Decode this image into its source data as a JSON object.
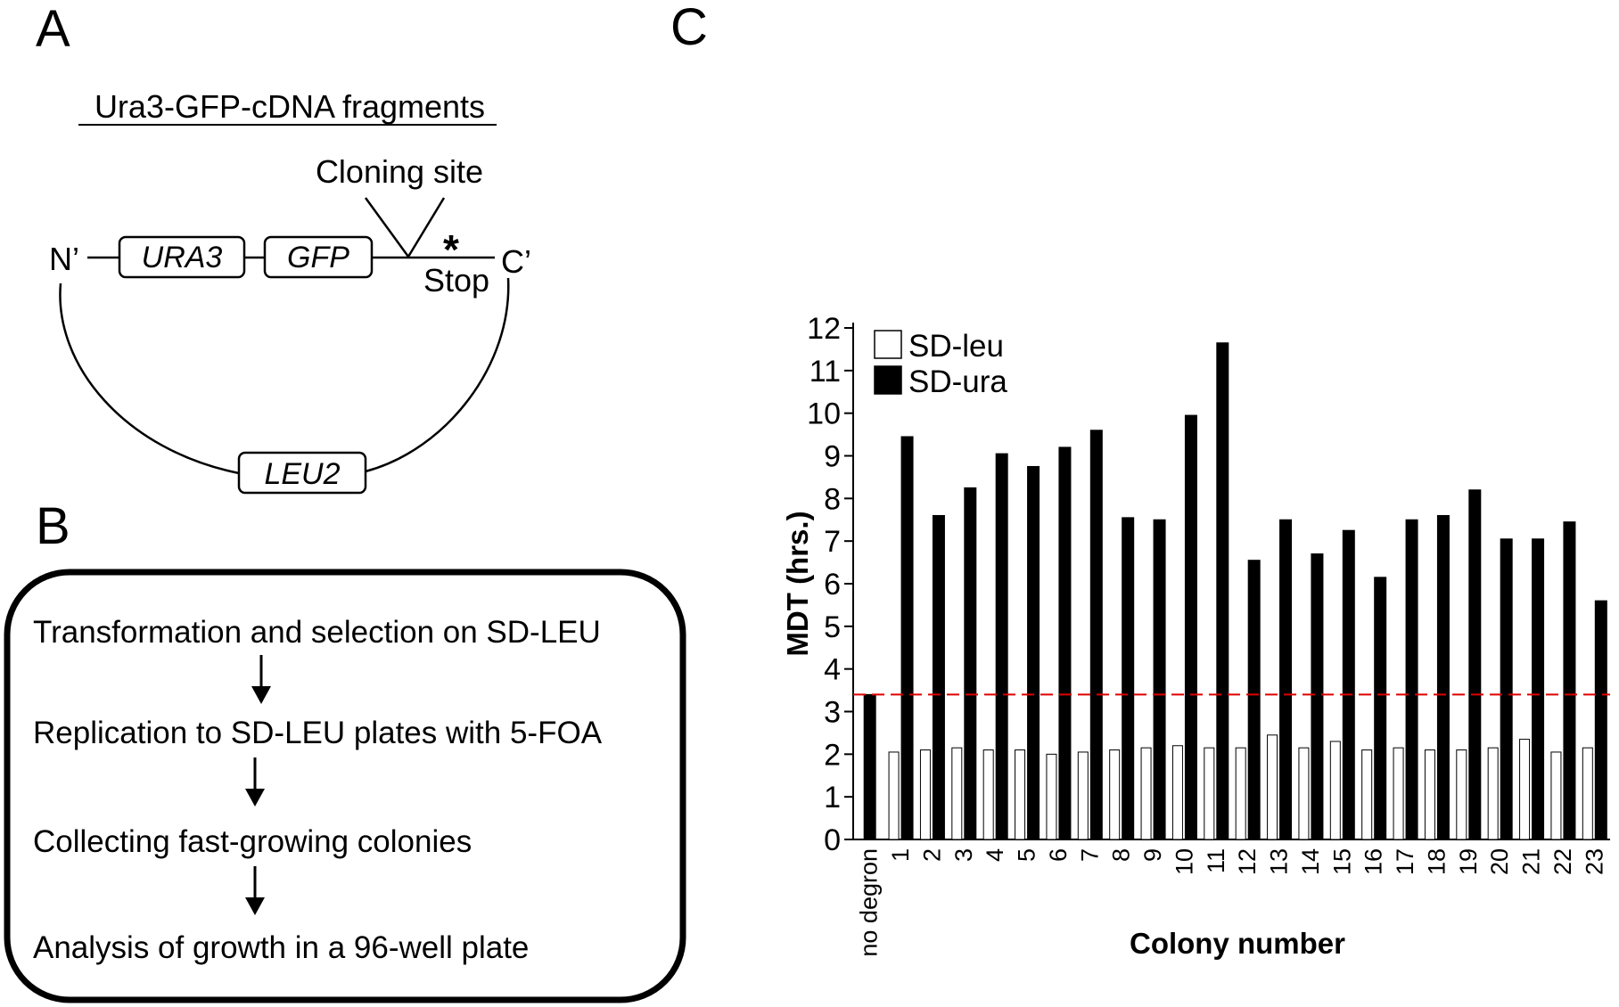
{
  "panel_a": {
    "letter": "A",
    "title": "Ura3-GFP-cDNA fragments",
    "cloning_site": "Cloning site",
    "n_term": "N’",
    "c_term": "C’",
    "ura3": "URA3",
    "gfp": "GFP",
    "stop_mark": "*",
    "stop": "Stop",
    "leu2": "LEU2"
  },
  "panel_b": {
    "letter": "B",
    "steps": [
      "Transformation and selection on SD-LEU",
      "Replication to SD-LEU plates with 5-FOA",
      "Collecting fast-growing colonies",
      "Analysis of growth in a 96-well plate"
    ]
  },
  "panel_c": {
    "letter": "C"
  },
  "chart_data": {
    "type": "bar",
    "ylabel": "MDT (hrs.)",
    "xlabel": "Colony number",
    "ylim": [
      0,
      12
    ],
    "yticks": [
      0,
      1,
      2,
      3,
      4,
      5,
      6,
      7,
      8,
      9,
      10,
      11,
      12
    ],
    "reference_line": {
      "y": 3.4,
      "color": "#e00000",
      "style": "dashed"
    },
    "categories": [
      "no degron",
      "1",
      "2",
      "3",
      "4",
      "5",
      "6",
      "7",
      "8",
      "9",
      "10",
      "11",
      "12",
      "13",
      "14",
      "15",
      "16",
      "17",
      "18",
      "19",
      "20",
      "21",
      "22",
      "23"
    ],
    "series": [
      {
        "name": "SD-leu",
        "color": "#ffffff",
        "values": [
          null,
          2.05,
          2.1,
          2.15,
          2.1,
          2.1,
          2.0,
          2.05,
          2.1,
          2.15,
          2.2,
          2.15,
          2.15,
          2.45,
          2.15,
          2.3,
          2.1,
          2.15,
          2.1,
          2.1,
          2.15,
          2.35,
          2.05,
          2.15
        ]
      },
      {
        "name": "SD-ura",
        "color": "#000000",
        "values": [
          3.4,
          9.45,
          7.6,
          8.25,
          9.05,
          8.75,
          9.2,
          9.6,
          7.55,
          7.5,
          9.95,
          11.65,
          6.55,
          7.5,
          6.7,
          7.25,
          6.15,
          7.5,
          7.6,
          8.2,
          7.05,
          7.05,
          7.45,
          5.6
        ]
      }
    ],
    "legend": [
      "SD-leu",
      "SD-ura"
    ],
    "legend_position": "top-left"
  }
}
